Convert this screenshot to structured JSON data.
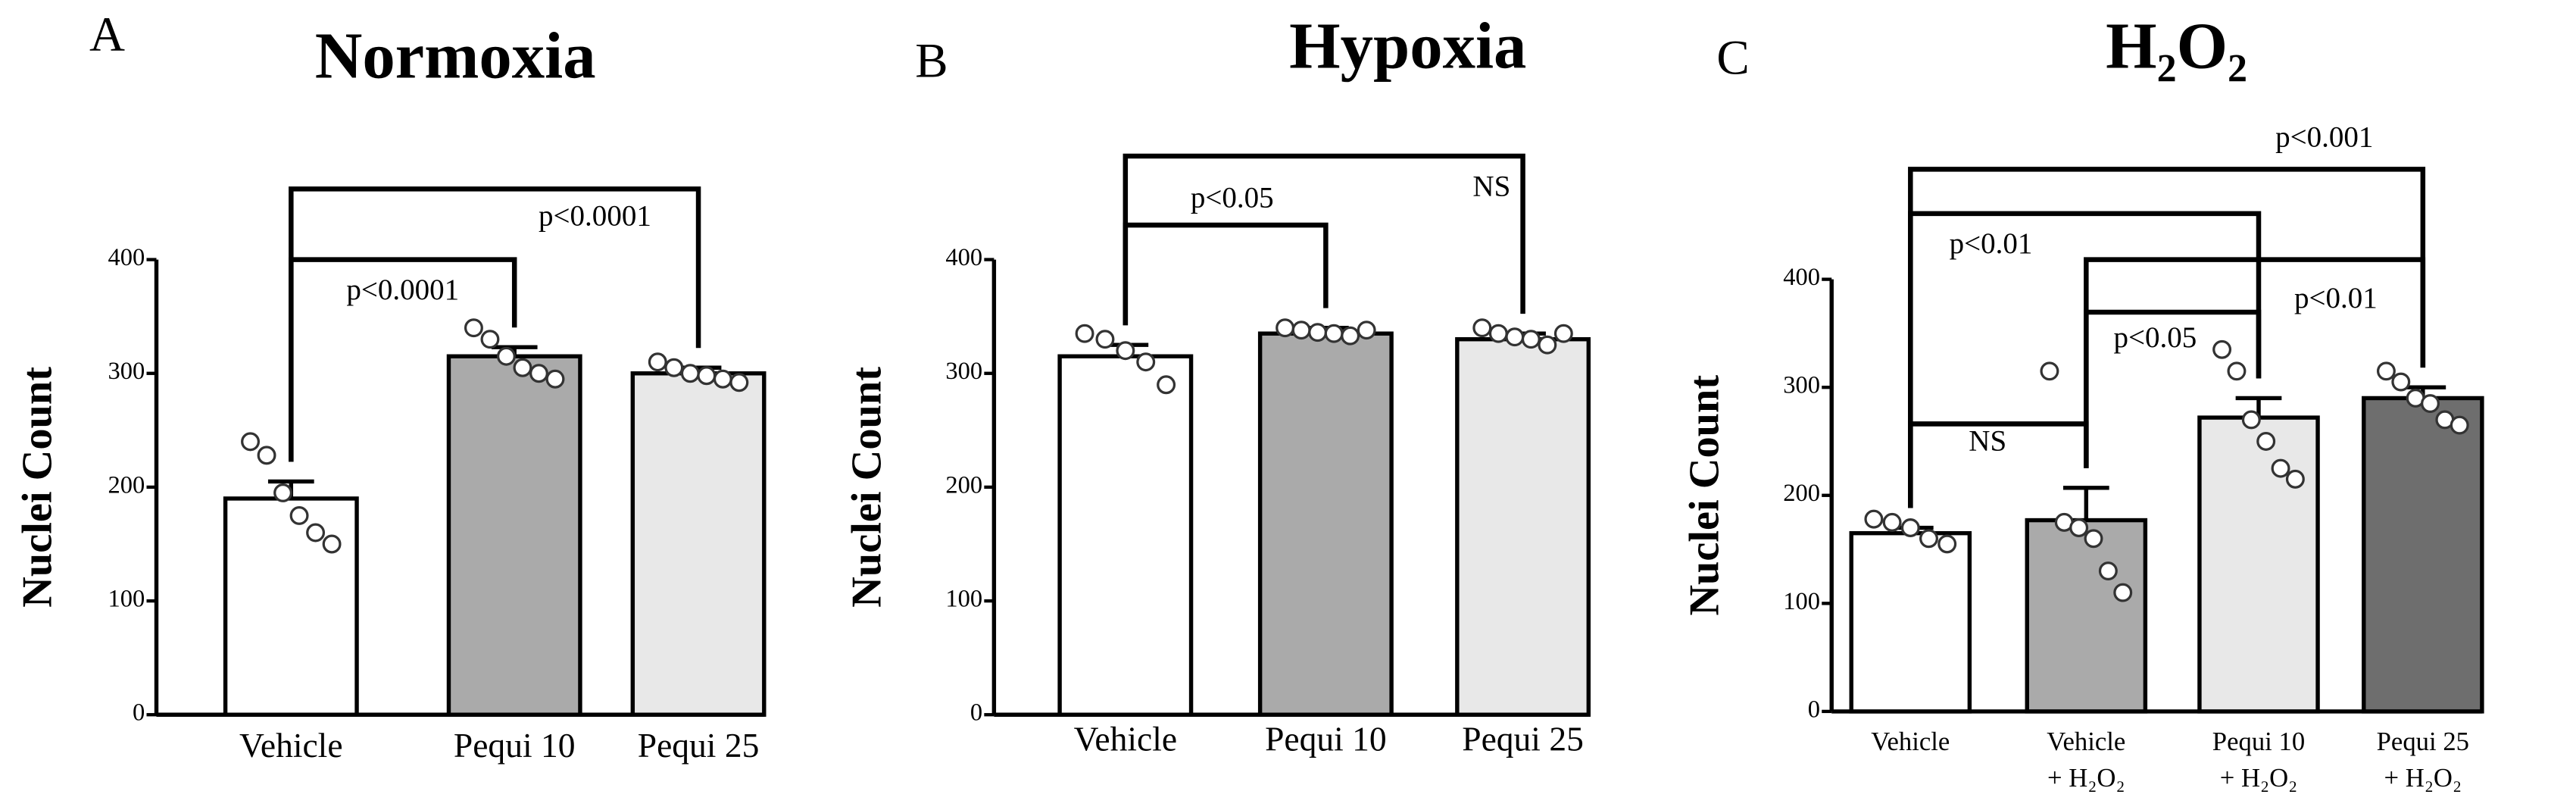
{
  "chart_data": [
    {
      "type": "bar",
      "panel": "A",
      "title": "Normoxia",
      "ylabel": "Nuclei Count",
      "categories": [
        [
          "Vehicle"
        ],
        [
          "Pequi 10"
        ],
        [
          "Pequi 25"
        ]
      ],
      "values": [
        190,
        315,
        300
      ],
      "errors": [
        15,
        8,
        5
      ],
      "points": [
        [
          240,
          228,
          195,
          175,
          160,
          150
        ],
        [
          340,
          330,
          315,
          305,
          300,
          295
        ],
        [
          310,
          305,
          300,
          298,
          295,
          292
        ]
      ],
      "colors": [
        "#ffffff",
        "#aaaaaa",
        "#e8e8e8"
      ],
      "ylim": [
        0,
        400
      ],
      "yticks": [
        0,
        100,
        200,
        300,
        400
      ],
      "annotations": [
        {
          "from": 0,
          "to": 1,
          "label": "p<0.0001"
        },
        {
          "from": 0,
          "to": 2,
          "label": "p<0.0001"
        }
      ]
    },
    {
      "type": "bar",
      "panel": "B",
      "title": "Hypoxia",
      "ylabel": "Nuclei Count",
      "categories": [
        [
          "Vehicle"
        ],
        [
          "Pequi 10"
        ],
        [
          "Pequi 25"
        ]
      ],
      "values": [
        315,
        335,
        330
      ],
      "errors": [
        10,
        5,
        5
      ],
      "points": [
        [
          335,
          330,
          320,
          310,
          290
        ],
        [
          340,
          338,
          336,
          335,
          333,
          338
        ],
        [
          340,
          335,
          332,
          330,
          325,
          335
        ]
      ],
      "colors": [
        "#ffffff",
        "#aaaaaa",
        "#e8e8e8"
      ],
      "ylim": [
        0,
        400
      ],
      "yticks": [
        0,
        100,
        200,
        300,
        400
      ],
      "annotations": [
        {
          "from": 0,
          "to": 1,
          "label": "p<0.05"
        },
        {
          "from": 0,
          "to": 2,
          "label": "NS"
        }
      ]
    },
    {
      "type": "bar",
      "panel": "C",
      "title": "H₂O₂",
      "ylabel": "Nuclei Count",
      "categories": [
        [
          "Vehicle"
        ],
        [
          "Vehicle",
          "+ H₂O₂"
        ],
        [
          "Pequi 10",
          "+ H₂O₂"
        ],
        [
          "Pequi 25",
          "+ H₂O₂"
        ]
      ],
      "values": [
        165,
        177,
        272,
        290
      ],
      "errors": [
        5,
        30,
        18,
        10
      ],
      "points": [
        [
          178,
          175,
          170,
          160,
          155
        ],
        [
          315,
          175,
          170,
          160,
          130,
          110
        ],
        [
          335,
          315,
          270,
          250,
          225,
          215
        ],
        [
          315,
          305,
          290,
          285,
          270,
          265
        ]
      ],
      "colors": [
        "#ffffff",
        "#aaaaaa",
        "#e8e8e8",
        "#6e6e6e"
      ],
      "ylim": [
        0,
        400
      ],
      "yticks": [
        0,
        100,
        200,
        300,
        400
      ],
      "annotations": [
        {
          "from": 0,
          "to": 1,
          "label": "NS"
        },
        {
          "from": 1,
          "to": 2,
          "label": "p<0.05"
        },
        {
          "from": 1,
          "to": 3,
          "label": "p<0.01"
        },
        {
          "from": 0,
          "to": 2,
          "label": "p<0.01"
        },
        {
          "from": 0,
          "to": 3,
          "label": "p<0.001"
        }
      ]
    }
  ]
}
